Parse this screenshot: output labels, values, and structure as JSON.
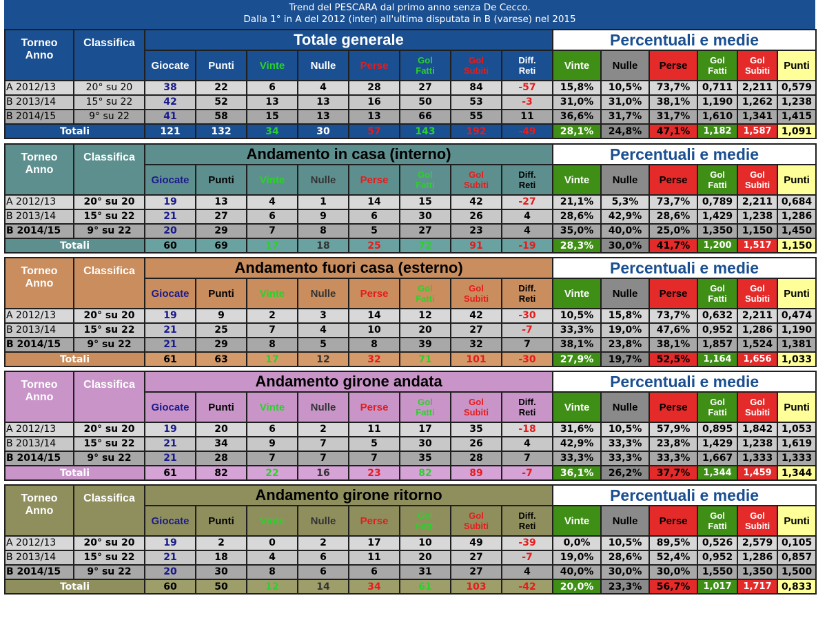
{
  "title": {
    "line1": "Trend del PESCARA dal primo anno senza De Cecco.",
    "line2": "Dalla 1° in A del 2012 (inter) all'ultima disputata in B (varese) nel 2015"
  },
  "labels": {
    "torneo_anno": [
      "Torneo",
      "Anno"
    ],
    "classifica": "Classifica",
    "percentuali": "Percentuali e medie",
    "totali": "Totali",
    "cols": [
      "Giocate",
      "Punti",
      "Vinte",
      "Nulle",
      "Perse",
      [
        "Gol",
        "Fatti"
      ],
      [
        "Gol",
        "Subiti"
      ],
      [
        "Diff.",
        "Reti"
      ]
    ],
    "pcols": [
      "Vinte",
      "Nulle",
      "Perse",
      [
        "Gol",
        "Fatti"
      ],
      [
        "Gol",
        "Subiti"
      ],
      "Punti"
    ]
  },
  "colors": {
    "navy": "#1a4f91",
    "green": "#3f8f17",
    "red": "#e52a2a",
    "grey": "#8a8a8a",
    "yellow": "#ffff9a"
  },
  "blocks": [
    {
      "title": "Totale generale",
      "bg": "#1a4f91",
      "light": "#1a4f91",
      "title_color": "#ffffff",
      "colhead_color": "#ffffff",
      "bold_class": false,
      "rows": [
        [
          "A 2012/13",
          "20° su 20",
          "38",
          "22",
          "6",
          "4",
          "28",
          "27",
          "84",
          "-57",
          "15,8%",
          "10,5%",
          "73,7%",
          "0,711",
          "2,211",
          "0,579"
        ],
        [
          "B 2013/14",
          "15° su 22",
          "42",
          "52",
          "13",
          "13",
          "16",
          "50",
          "53",
          "-3",
          "31,0%",
          "31,0%",
          "38,1%",
          "1,190",
          "1,262",
          "1,238"
        ],
        [
          "B 2014/15",
          "9° su 22",
          "41",
          "58",
          "15",
          "13",
          "13",
          "66",
          "55",
          "11",
          "36,6%",
          "31,7%",
          "31,7%",
          "1,610",
          "1,341",
          "1,415"
        ]
      ],
      "total": [
        "121",
        "132",
        "34",
        "30",
        "57",
        "143",
        "192",
        "-49",
        "28,1%",
        "24,8%",
        "47,1%",
        "1,182",
        "1,587",
        "1,091"
      ]
    },
    {
      "title": "Andamento in casa (interno)",
      "bg": "#5e8f8f",
      "light": "#6aa1a1",
      "title_color": "#000000",
      "colhead_color": "#000000",
      "bold_class": true,
      "rows": [
        [
          "A 2012/13",
          "20° su 20",
          "19",
          "13",
          "4",
          "1",
          "14",
          "15",
          "42",
          "-27",
          "21,1%",
          "5,3%",
          "73,7%",
          "0,789",
          "2,211",
          "0,684"
        ],
        [
          "B 2013/14",
          "15° su 22",
          "21",
          "27",
          "6",
          "9",
          "6",
          "30",
          "26",
          "4",
          "28,6%",
          "42,9%",
          "28,6%",
          "1,429",
          "1,238",
          "1,286"
        ],
        [
          "B 2014/15",
          "9° su 22",
          "20",
          "29",
          "7",
          "8",
          "5",
          "27",
          "23",
          "4",
          "35,0%",
          "40,0%",
          "25,0%",
          "1,350",
          "1,150",
          "1,450"
        ]
      ],
      "total": [
        "60",
        "69",
        "17",
        "18",
        "25",
        "72",
        "91",
        "-19",
        "28,3%",
        "30,0%",
        "41,7%",
        "1,200",
        "1,517",
        "1,150"
      ]
    },
    {
      "title": "Andamento fuori casa (esterno)",
      "bg": "#c98d5e",
      "light": "#d49a6a",
      "title_color": "#000000",
      "colhead_color": "#000000",
      "bold_class": true,
      "rows": [
        [
          "A 2012/13",
          "20° su 20",
          "19",
          "9",
          "2",
          "3",
          "14",
          "12",
          "42",
          "-30",
          "10,5%",
          "15,8%",
          "73,7%",
          "0,632",
          "2,211",
          "0,474"
        ],
        [
          "B 2013/14",
          "15° su 22",
          "21",
          "25",
          "7",
          "4",
          "10",
          "20",
          "27",
          "-7",
          "33,3%",
          "19,0%",
          "47,6%",
          "0,952",
          "1,286",
          "1,190"
        ],
        [
          "B 2014/15",
          "9° su 22",
          "21",
          "29",
          "8",
          "5",
          "8",
          "39",
          "32",
          "7",
          "38,1%",
          "23,8%",
          "38,1%",
          "1,857",
          "1,524",
          "1,381"
        ]
      ],
      "total": [
        "61",
        "63",
        "17",
        "12",
        "32",
        "71",
        "101",
        "-30",
        "27,9%",
        "19,7%",
        "52,5%",
        "1,164",
        "1,656",
        "1,033"
      ]
    },
    {
      "title": "Andamento girone andata",
      "bg": "#c995c9",
      "light": "#d6a3d6",
      "title_color": "#000000",
      "colhead_color": "#000000",
      "bold_class": true,
      "rows": [
        [
          "A 2012/13",
          "20° su 20",
          "19",
          "20",
          "6",
          "2",
          "11",
          "17",
          "35",
          "-18",
          "31,6%",
          "10,5%",
          "57,9%",
          "0,895",
          "1,842",
          "1,053"
        ],
        [
          "B 2013/14",
          "15° su 22",
          "21",
          "34",
          "9",
          "7",
          "5",
          "30",
          "26",
          "4",
          "42,9%",
          "33,3%",
          "23,8%",
          "1,429",
          "1,238",
          "1,619"
        ],
        [
          "B 2014/15",
          "9° su 22",
          "21",
          "28",
          "7",
          "7",
          "7",
          "35",
          "28",
          "7",
          "33,3%",
          "33,3%",
          "33,3%",
          "1,667",
          "1,333",
          "1,333"
        ]
      ],
      "total": [
        "61",
        "82",
        "22",
        "16",
        "23",
        "82",
        "89",
        "-7",
        "36,1%",
        "26,2%",
        "37,7%",
        "1,344",
        "1,459",
        "1,344"
      ]
    },
    {
      "title": "Andamento girone ritorno",
      "bg": "#8f8f5e",
      "light": "#9e9e6a",
      "title_color": "#000000",
      "colhead_color": "#000000",
      "bold_class": true,
      "rows": [
        [
          "A 2012/13",
          "20° su 20",
          "19",
          "2",
          "0",
          "2",
          "17",
          "10",
          "49",
          "-39",
          "0,0%",
          "10,5%",
          "89,5%",
          "0,526",
          "2,579",
          "0,105"
        ],
        [
          "B 2013/14",
          "15° su 22",
          "21",
          "18",
          "4",
          "6",
          "11",
          "20",
          "27",
          "-7",
          "19,0%",
          "28,6%",
          "52,4%",
          "0,952",
          "1,286",
          "0,857"
        ],
        [
          "B 2014/15",
          "9° su 22",
          "20",
          "30",
          "8",
          "6",
          "6",
          "31",
          "27",
          "4",
          "40,0%",
          "30,0%",
          "30,0%",
          "1,550",
          "1,350",
          "1,500"
        ]
      ],
      "total": [
        "60",
        "50",
        "12",
        "14",
        "34",
        "61",
        "103",
        "-42",
        "20,0%",
        "23,3%",
        "56,7%",
        "1,017",
        "1,717",
        "0,833"
      ]
    }
  ]
}
